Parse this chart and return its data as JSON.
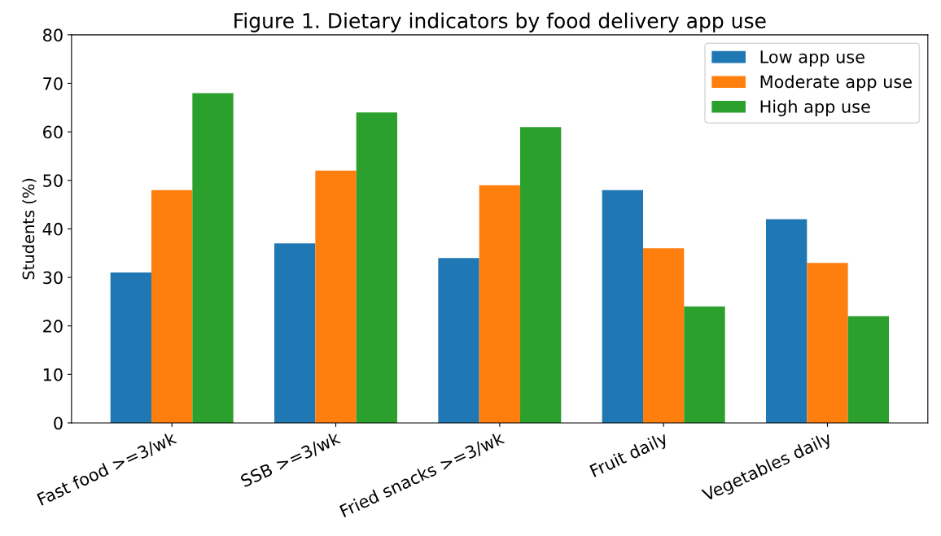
{
  "chart_data": {
    "type": "bar",
    "title": "Figure 1. Dietary indicators by food delivery app use",
    "ylabel": "Students (%)",
    "categories": [
      "Fast food >=3/wk",
      "SSB >=3/wk",
      "Fried snacks >=3/wk",
      "Fruit daily",
      "Vegetables daily"
    ],
    "series": [
      {
        "name": "Low app use",
        "color": "#1f77b4",
        "values": [
          31,
          37,
          34,
          48,
          42
        ]
      },
      {
        "name": "Moderate app use",
        "color": "#ff7f0e",
        "values": [
          48,
          52,
          49,
          36,
          33
        ]
      },
      {
        "name": "High app use",
        "color": "#2ca02c",
        "values": [
          68,
          64,
          61,
          24,
          22
        ]
      }
    ],
    "ylim": [
      0,
      80
    ],
    "yticks": [
      0,
      10,
      20,
      30,
      40,
      50,
      60,
      70,
      80
    ],
    "grid": false,
    "legend": "top right"
  }
}
